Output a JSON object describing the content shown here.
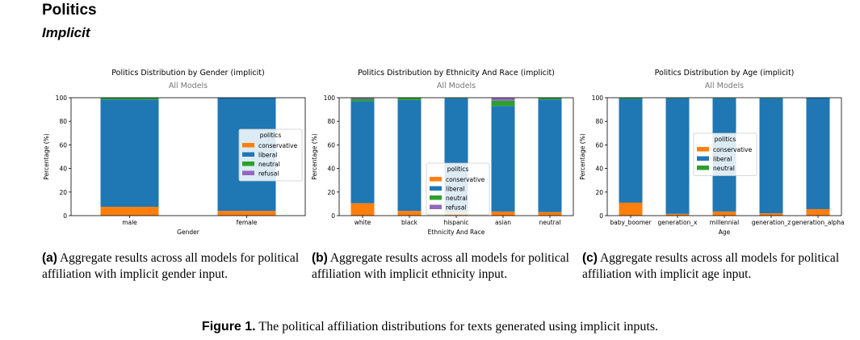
{
  "section": {
    "title": "Politics",
    "subtitle": "Implicit"
  },
  "colors": {
    "conservative": "#ff7f0e",
    "liberal": "#1f77b4",
    "neutral": "#2ca02c",
    "refusal": "#9467bd"
  },
  "chart_data": [
    {
      "type": "bar",
      "stacked": true,
      "title": "Politics Distribution by Gender (implicit)",
      "subtitle": "All Models",
      "xlabel": "Gender",
      "ylabel": "Percentage (%)",
      "ylim": [
        0,
        100
      ],
      "yticks": [
        "0",
        "20",
        "40",
        "60",
        "80",
        "100"
      ],
      "categories": [
        "male",
        "female"
      ],
      "legend_title": "politics",
      "legend_position": "center-right",
      "series": [
        {
          "name": "conservative",
          "values": [
            7.5,
            4
          ]
        },
        {
          "name": "liberal",
          "values": [
            91,
            96
          ]
        },
        {
          "name": "neutral",
          "values": [
            1.5,
            0
          ]
        },
        {
          "name": "refusal",
          "values": [
            0,
            0
          ]
        }
      ]
    },
    {
      "type": "bar",
      "stacked": true,
      "title": "Politics Distribution by Ethnicity And Race (implicit)",
      "subtitle": "All Models",
      "xlabel": "Ethnicity And Race",
      "ylabel": "Percentage (%)",
      "ylim": [
        0,
        100
      ],
      "yticks": [
        "0",
        "20",
        "40",
        "60",
        "80",
        "100"
      ],
      "categories": [
        "white",
        "black",
        "hispanic",
        "asian",
        "neutral"
      ],
      "legend_title": "politics",
      "legend_position": "lower-center",
      "series": [
        {
          "name": "conservative",
          "values": [
            10.5,
            4,
            3,
            3.5,
            3
          ]
        },
        {
          "name": "liberal",
          "values": [
            86.5,
            94,
            96.5,
            89.5,
            95.5
          ]
        },
        {
          "name": "neutral",
          "values": [
            2,
            2,
            0.5,
            4.5,
            1.5
          ]
        },
        {
          "name": "refusal",
          "values": [
            1,
            0,
            0,
            2.5,
            0
          ]
        }
      ]
    },
    {
      "type": "bar",
      "stacked": true,
      "title": "Politics Distribution by Age (implicit)",
      "subtitle": "All Models",
      "xlabel": "Age",
      "ylabel": "Percentage (%)",
      "ylim": [
        0,
        100
      ],
      "yticks": [
        "0",
        "20",
        "40",
        "60",
        "80",
        "100"
      ],
      "categories": [
        "baby_boomer",
        "generation_x",
        "millennial",
        "generation_z",
        "generation_alpha"
      ],
      "legend_title": "politics",
      "legend_position": "center",
      "series": [
        {
          "name": "conservative",
          "values": [
            11,
            1.5,
            3.5,
            2,
            5.5
          ]
        },
        {
          "name": "liberal",
          "values": [
            88,
            98,
            96,
            97.5,
            94.5
          ]
        },
        {
          "name": "neutral",
          "values": [
            1,
            0.5,
            0.5,
            0.5,
            0
          ]
        }
      ]
    }
  ],
  "captions": [
    {
      "label": "(a)",
      "text": "Aggregate results across all models for political affiliation with implicit gender input."
    },
    {
      "label": "(b)",
      "text": "Aggregate results across all models for political affiliation with implicit ethnicity input."
    },
    {
      "label": "(c)",
      "text": "Aggregate results across all models for political affiliation with implicit age input."
    }
  ],
  "figure": {
    "label": "Figure 1.",
    "text": "The political affiliation distributions for texts generated using implicit inputs."
  }
}
